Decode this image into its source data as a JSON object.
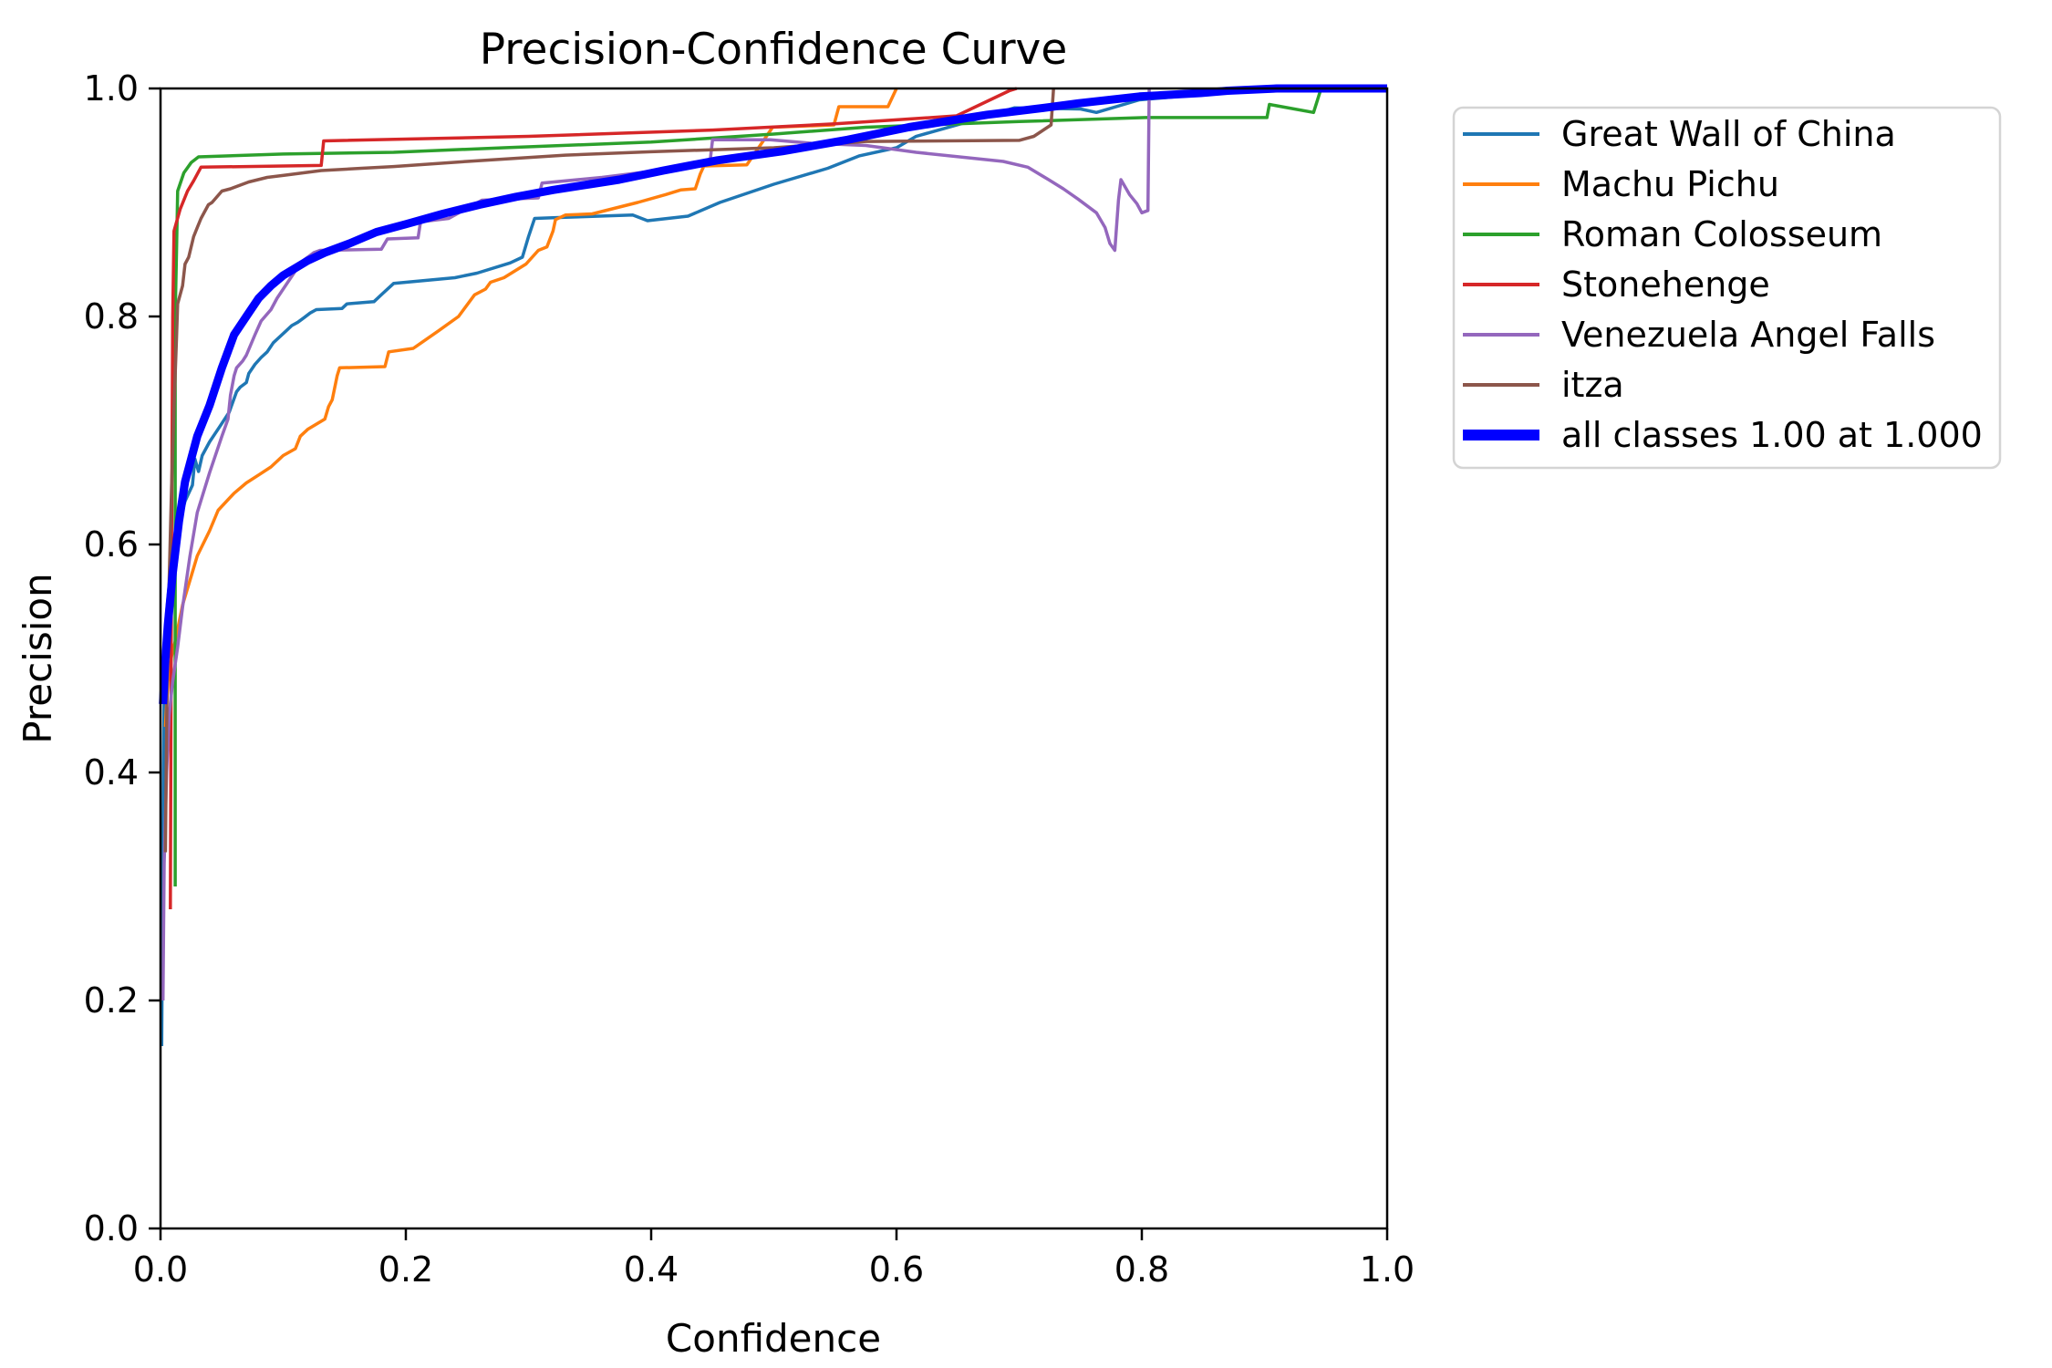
{
  "chart_data": {
    "type": "line",
    "title": "Precision-Confidence Curve",
    "xlabel": "Confidence",
    "ylabel": "Precision",
    "xlim": [
      0.0,
      1.0
    ],
    "ylim": [
      0.0,
      1.0
    ],
    "x_ticks": [
      "0.0",
      "0.2",
      "0.4",
      "0.6",
      "0.8",
      "1.0"
    ],
    "y_ticks": [
      "0.0",
      "0.2",
      "0.4",
      "0.6",
      "0.8",
      "1.0"
    ],
    "grid": false,
    "legend_position": "outside-right",
    "axis_color": "#000000",
    "legend_border_color": "#d4d4d4",
    "series": [
      {
        "name": "Great Wall of China",
        "color": "#1f77b4",
        "line_width": 3.5,
        "points": [
          [
            0.001,
            0.16
          ],
          [
            0.002,
            0.35
          ],
          [
            0.003,
            0.47
          ],
          [
            0.005,
            0.54
          ],
          [
            0.008,
            0.575
          ],
          [
            0.012,
            0.6
          ],
          [
            0.016,
            0.622
          ],
          [
            0.02,
            0.638
          ],
          [
            0.026,
            0.652
          ],
          [
            0.028,
            0.675
          ],
          [
            0.031,
            0.664
          ],
          [
            0.034,
            0.678
          ],
          [
            0.04,
            0.69
          ],
          [
            0.048,
            0.703
          ],
          [
            0.056,
            0.716
          ],
          [
            0.062,
            0.734
          ],
          [
            0.065,
            0.738
          ],
          [
            0.07,
            0.742
          ],
          [
            0.072,
            0.75
          ],
          [
            0.077,
            0.758
          ],
          [
            0.082,
            0.764
          ],
          [
            0.087,
            0.769
          ],
          [
            0.092,
            0.777
          ],
          [
            0.097,
            0.782
          ],
          [
            0.102,
            0.787
          ],
          [
            0.107,
            0.792
          ],
          [
            0.112,
            0.795
          ],
          [
            0.117,
            0.799
          ],
          [
            0.122,
            0.803
          ],
          [
            0.127,
            0.806
          ],
          [
            0.148,
            0.807
          ],
          [
            0.152,
            0.811
          ],
          [
            0.174,
            0.813
          ],
          [
            0.181,
            0.82
          ],
          [
            0.19,
            0.829
          ],
          [
            0.24,
            0.834
          ],
          [
            0.258,
            0.838
          ],
          [
            0.285,
            0.847
          ],
          [
            0.295,
            0.852
          ],
          [
            0.3,
            0.87
          ],
          [
            0.305,
            0.886
          ],
          [
            0.33,
            0.887
          ],
          [
            0.385,
            0.889
          ],
          [
            0.397,
            0.884
          ],
          [
            0.43,
            0.888
          ],
          [
            0.456,
            0.9
          ],
          [
            0.5,
            0.916
          ],
          [
            0.544,
            0.93
          ],
          [
            0.57,
            0.941
          ],
          [
            0.6,
            0.948
          ],
          [
            0.616,
            0.958
          ],
          [
            0.659,
            0.971
          ],
          [
            0.696,
            0.983
          ],
          [
            0.75,
            0.982
          ],
          [
            0.763,
            0.979
          ],
          [
            0.798,
            0.99
          ],
          [
            0.83,
            0.993
          ],
          [
            0.86,
            0.997
          ],
          [
            0.885,
            1.0
          ],
          [
            1.0,
            1.0
          ]
        ]
      },
      {
        "name": "Machu Pichu",
        "color": "#ff7f0e",
        "line_width": 3.5,
        "points": [
          [
            0.004,
            0.44
          ],
          [
            0.006,
            0.48
          ],
          [
            0.009,
            0.502
          ],
          [
            0.012,
            0.515
          ],
          [
            0.018,
            0.547
          ],
          [
            0.025,
            0.572
          ],
          [
            0.03,
            0.59
          ],
          [
            0.04,
            0.612
          ],
          [
            0.047,
            0.63
          ],
          [
            0.06,
            0.645
          ],
          [
            0.07,
            0.654
          ],
          [
            0.08,
            0.661
          ],
          [
            0.09,
            0.668
          ],
          [
            0.1,
            0.678
          ],
          [
            0.11,
            0.684
          ],
          [
            0.114,
            0.695
          ],
          [
            0.12,
            0.701
          ],
          [
            0.134,
            0.71
          ],
          [
            0.137,
            0.721
          ],
          [
            0.14,
            0.727
          ],
          [
            0.144,
            0.748
          ],
          [
            0.146,
            0.755
          ],
          [
            0.183,
            0.756
          ],
          [
            0.186,
            0.769
          ],
          [
            0.206,
            0.772
          ],
          [
            0.226,
            0.787
          ],
          [
            0.243,
            0.8
          ],
          [
            0.256,
            0.819
          ],
          [
            0.265,
            0.824
          ],
          [
            0.269,
            0.83
          ],
          [
            0.28,
            0.834
          ],
          [
            0.298,
            0.846
          ],
          [
            0.308,
            0.858
          ],
          [
            0.315,
            0.861
          ],
          [
            0.32,
            0.875
          ],
          [
            0.322,
            0.885
          ],
          [
            0.33,
            0.889
          ],
          [
            0.352,
            0.89
          ],
          [
            0.389,
            0.9
          ],
          [
            0.412,
            0.907
          ],
          [
            0.424,
            0.911
          ],
          [
            0.436,
            0.912
          ],
          [
            0.44,
            0.925
          ],
          [
            0.443,
            0.932
          ],
          [
            0.478,
            0.933
          ],
          [
            0.499,
            0.966
          ],
          [
            0.549,
            0.968
          ],
          [
            0.553,
            0.984
          ],
          [
            0.593,
            0.984
          ],
          [
            0.6,
            1.0
          ]
        ]
      },
      {
        "name": "Roman Colosseum",
        "color": "#2ca02c",
        "line_width": 3.5,
        "points": [
          [
            0.012,
            0.3
          ],
          [
            0.012,
            0.8
          ],
          [
            0.013,
            0.855
          ],
          [
            0.014,
            0.91
          ],
          [
            0.019,
            0.926
          ],
          [
            0.025,
            0.935
          ],
          [
            0.031,
            0.94
          ],
          [
            0.1,
            0.9425
          ],
          [
            0.19,
            0.944
          ],
          [
            0.28,
            0.948
          ],
          [
            0.4,
            0.953
          ],
          [
            0.5,
            0.96
          ],
          [
            0.575,
            0.966
          ],
          [
            0.7,
            0.971
          ],
          [
            0.803,
            0.9745
          ],
          [
            0.902,
            0.9745
          ],
          [
            0.904,
            0.986
          ],
          [
            0.94,
            0.979
          ],
          [
            0.946,
            0.9995
          ],
          [
            0.948,
            1.0
          ]
        ]
      },
      {
        "name": "Stonehenge",
        "color": "#d62728",
        "line_width": 3.5,
        "points": [
          [
            0.008,
            0.28
          ],
          [
            0.009,
            0.6
          ],
          [
            0.01,
            0.8
          ],
          [
            0.011,
            0.875
          ],
          [
            0.016,
            0.894
          ],
          [
            0.022,
            0.91
          ],
          [
            0.027,
            0.919
          ],
          [
            0.033,
            0.931
          ],
          [
            0.131,
            0.9325
          ],
          [
            0.133,
            0.954
          ],
          [
            0.3,
            0.958
          ],
          [
            0.45,
            0.9635
          ],
          [
            0.55,
            0.969
          ],
          [
            0.6,
            0.9725
          ],
          [
            0.649,
            0.976
          ],
          [
            0.692,
            0.998
          ],
          [
            0.698,
            1.0
          ]
        ]
      },
      {
        "name": "Venezuela Angel Falls",
        "color": "#9467bd",
        "line_width": 3.5,
        "points": [
          [
            0.002,
            0.2
          ],
          [
            0.003,
            0.32
          ],
          [
            0.005,
            0.4
          ],
          [
            0.007,
            0.45
          ],
          [
            0.01,
            0.48
          ],
          [
            0.014,
            0.51
          ],
          [
            0.018,
            0.545
          ],
          [
            0.024,
            0.59
          ],
          [
            0.03,
            0.628
          ],
          [
            0.04,
            0.663
          ],
          [
            0.05,
            0.695
          ],
          [
            0.055,
            0.71
          ],
          [
            0.057,
            0.731
          ],
          [
            0.06,
            0.748
          ],
          [
            0.062,
            0.755
          ],
          [
            0.067,
            0.761
          ],
          [
            0.07,
            0.766
          ],
          [
            0.077,
            0.784
          ],
          [
            0.082,
            0.796
          ],
          [
            0.09,
            0.806
          ],
          [
            0.095,
            0.816
          ],
          [
            0.1,
            0.824
          ],
          [
            0.105,
            0.832
          ],
          [
            0.11,
            0.84
          ],
          [
            0.115,
            0.848
          ],
          [
            0.12,
            0.852
          ],
          [
            0.125,
            0.856
          ],
          [
            0.13,
            0.858
          ],
          [
            0.18,
            0.859
          ],
          [
            0.185,
            0.868
          ],
          [
            0.21,
            0.869
          ],
          [
            0.212,
            0.883
          ],
          [
            0.235,
            0.886
          ],
          [
            0.262,
            0.902
          ],
          [
            0.308,
            0.904
          ],
          [
            0.311,
            0.917
          ],
          [
            0.36,
            0.922
          ],
          [
            0.42,
            0.93
          ],
          [
            0.448,
            0.936
          ],
          [
            0.45,
            0.955
          ],
          [
            0.497,
            0.955
          ],
          [
            0.53,
            0.952
          ],
          [
            0.575,
            0.95
          ],
          [
            0.616,
            0.944
          ],
          [
            0.687,
            0.936
          ],
          [
            0.707,
            0.931
          ],
          [
            0.724,
            0.92
          ],
          [
            0.736,
            0.912
          ],
          [
            0.748,
            0.903
          ],
          [
            0.763,
            0.891
          ],
          [
            0.77,
            0.878
          ],
          [
            0.774,
            0.864
          ],
          [
            0.778,
            0.858
          ],
          [
            0.781,
            0.902
          ],
          [
            0.783,
            0.92
          ],
          [
            0.79,
            0.907
          ],
          [
            0.796,
            0.899
          ],
          [
            0.8,
            0.891
          ],
          [
            0.805,
            0.893
          ],
          [
            0.806,
            1.0
          ]
        ]
      },
      {
        "name": "itza",
        "color": "#8c564b",
        "line_width": 3.5,
        "points": [
          [
            0.004,
            0.33
          ],
          [
            0.005,
            0.44
          ],
          [
            0.006,
            0.52
          ],
          [
            0.007,
            0.565
          ],
          [
            0.009,
            0.65
          ],
          [
            0.011,
            0.72
          ],
          [
            0.013,
            0.78
          ],
          [
            0.014,
            0.811
          ],
          [
            0.018,
            0.827
          ],
          [
            0.02,
            0.846
          ],
          [
            0.023,
            0.852
          ],
          [
            0.027,
            0.87
          ],
          [
            0.03,
            0.878
          ],
          [
            0.033,
            0.886
          ],
          [
            0.039,
            0.898
          ],
          [
            0.042,
            0.9
          ],
          [
            0.05,
            0.91
          ],
          [
            0.057,
            0.912
          ],
          [
            0.072,
            0.918
          ],
          [
            0.087,
            0.922
          ],
          [
            0.102,
            0.924
          ],
          [
            0.131,
            0.928
          ],
          [
            0.164,
            0.93
          ],
          [
            0.19,
            0.9315
          ],
          [
            0.25,
            0.936
          ],
          [
            0.33,
            0.9415
          ],
          [
            0.4,
            0.9445
          ],
          [
            0.5,
            0.948
          ],
          [
            0.575,
            0.9535
          ],
          [
            0.7,
            0.9545
          ],
          [
            0.712,
            0.958
          ],
          [
            0.726,
            0.968
          ],
          [
            0.728,
            1.0
          ]
        ]
      },
      {
        "name": "all classes 1.00 at 1.000",
        "color": "#0000ff",
        "line_width": 9,
        "points": [
          [
            0.002,
            0.46
          ],
          [
            0.004,
            0.5
          ],
          [
            0.006,
            0.53
          ],
          [
            0.01,
            0.575
          ],
          [
            0.015,
            0.62
          ],
          [
            0.02,
            0.655
          ],
          [
            0.03,
            0.695
          ],
          [
            0.04,
            0.722
          ],
          [
            0.05,
            0.755
          ],
          [
            0.06,
            0.784
          ],
          [
            0.07,
            0.8
          ],
          [
            0.08,
            0.816
          ],
          [
            0.09,
            0.827
          ],
          [
            0.1,
            0.836
          ],
          [
            0.12,
            0.849
          ],
          [
            0.134,
            0.856
          ],
          [
            0.154,
            0.864
          ],
          [
            0.176,
            0.874
          ],
          [
            0.2,
            0.881
          ],
          [
            0.23,
            0.89
          ],
          [
            0.26,
            0.898
          ],
          [
            0.29,
            0.905
          ],
          [
            0.32,
            0.911
          ],
          [
            0.35,
            0.916
          ],
          [
            0.374,
            0.92
          ],
          [
            0.41,
            0.928
          ],
          [
            0.454,
            0.937
          ],
          [
            0.507,
            0.945
          ],
          [
            0.56,
            0.955
          ],
          [
            0.61,
            0.966
          ],
          [
            0.674,
            0.977
          ],
          [
            0.72,
            0.983
          ],
          [
            0.748,
            0.987
          ],
          [
            0.798,
            0.993
          ],
          [
            0.848,
            0.996
          ],
          [
            0.87,
            0.998
          ],
          [
            0.91,
            1.0
          ],
          [
            1.0,
            1.0
          ]
        ]
      }
    ]
  }
}
